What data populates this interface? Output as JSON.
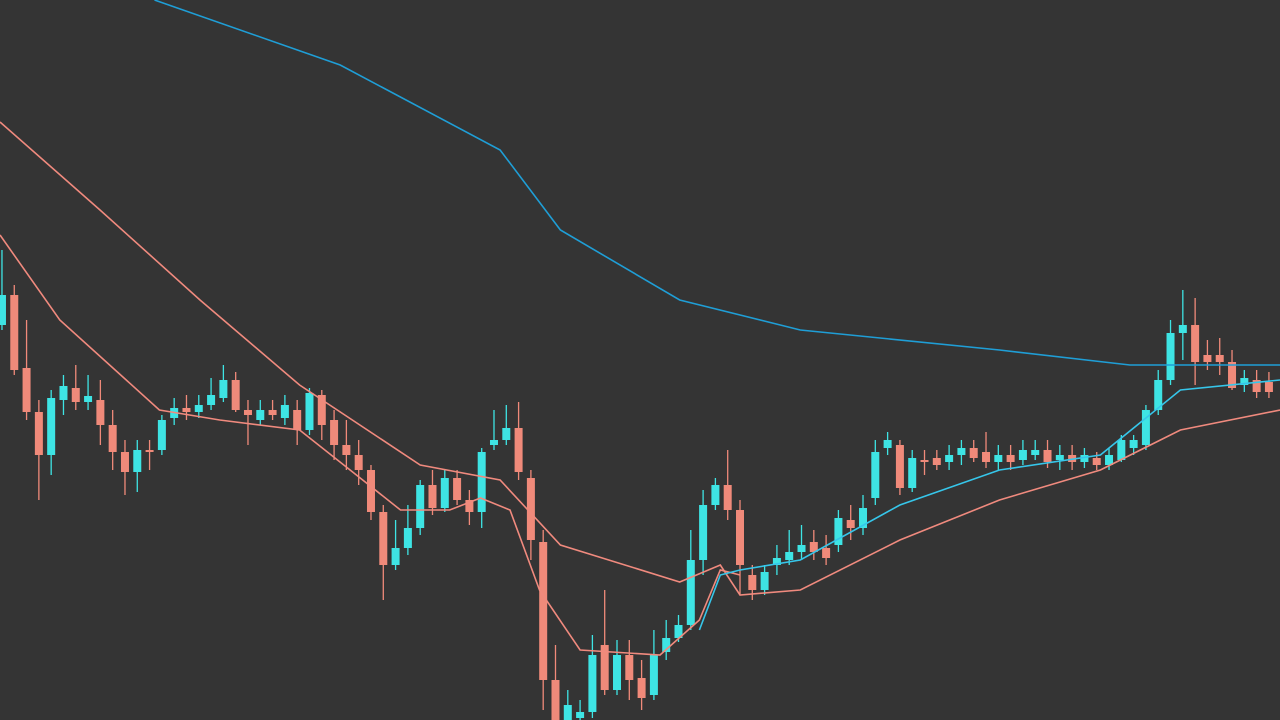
{
  "chart_data": {
    "type": "candlestick",
    "up_color": "#3ee4e4",
    "down_color": "#f08a7a",
    "xlim": [
      -0.16,
      103.9
    ],
    "ylim": [
      0,
      720
    ],
    "x": [
      0,
      1,
      2,
      3,
      4,
      5,
      6,
      7,
      8,
      9,
      10,
      11,
      12,
      13,
      14,
      15,
      16,
      17,
      18,
      19,
      20,
      21,
      22,
      23,
      24,
      25,
      26,
      27,
      28,
      29,
      30,
      31,
      32,
      33,
      34,
      35,
      36,
      37,
      38,
      39,
      40,
      41,
      42,
      43,
      44,
      45,
      46,
      47,
      48,
      49,
      50,
      51,
      52,
      53,
      54,
      55,
      56,
      57,
      58,
      59,
      60,
      61,
      62,
      63,
      64,
      65,
      66,
      67,
      68,
      69,
      70,
      71,
      72,
      73,
      74,
      75,
      76,
      77,
      78,
      79,
      80,
      81,
      82,
      83,
      84,
      85,
      86,
      87,
      88,
      89,
      90,
      91,
      92,
      93,
      94,
      95,
      96,
      97,
      98,
      99,
      100,
      101,
      102,
      103
    ],
    "open": [
      395,
      425,
      352,
      308,
      265,
      320,
      332,
      318,
      320,
      295,
      268,
      248,
      270,
      270,
      302,
      312,
      308,
      315,
      322,
      340,
      310,
      300,
      310,
      302,
      310,
      290,
      325,
      300,
      275,
      265,
      250,
      208,
      155,
      172,
      192,
      235,
      212,
      242,
      220,
      208,
      275,
      280,
      292,
      242,
      178,
      40,
      0,
      2,
      8,
      75,
      30,
      65,
      42,
      25,
      68,
      82,
      95,
      160,
      215,
      235,
      210,
      145,
      130,
      155,
      160,
      168,
      178,
      172,
      175,
      200,
      192,
      222,
      272,
      275,
      232,
      260,
      262,
      258,
      265,
      272,
      268,
      258,
      265,
      260,
      265,
      270,
      260,
      265,
      258,
      262,
      255,
      260,
      272,
      275,
      310,
      340,
      387,
      395,
      365,
      365,
      358,
      335,
      340,
      338
    ],
    "high": [
      470,
      435,
      400,
      320,
      330,
      345,
      355,
      345,
      340,
      310,
      280,
      280,
      280,
      305,
      322,
      325,
      325,
      342,
      355,
      348,
      320,
      320,
      320,
      325,
      320,
      332,
      330,
      310,
      300,
      280,
      255,
      215,
      200,
      215,
      240,
      250,
      250,
      250,
      230,
      272,
      310,
      315,
      318,
      250,
      190,
      75,
      30,
      20,
      85,
      130,
      80,
      80,
      60,
      90,
      100,
      105,
      190,
      230,
      242,
      270,
      220,
      155,
      155,
      175,
      190,
      195,
      190,
      185,
      210,
      215,
      225,
      280,
      288,
      280,
      270,
      270,
      270,
      275,
      280,
      280,
      288,
      275,
      275,
      280,
      280,
      280,
      275,
      275,
      272,
      268,
      272,
      285,
      285,
      315,
      350,
      400,
      430,
      422,
      380,
      382,
      370,
      350,
      350,
      348
    ],
    "low": [
      390,
      345,
      300,
      220,
      245,
      305,
      310,
      310,
      275,
      250,
      225,
      228,
      250,
      265,
      295,
      300,
      302,
      310,
      318,
      308,
      275,
      295,
      300,
      295,
      275,
      285,
      280,
      260,
      250,
      235,
      200,
      120,
      150,
      165,
      185,
      205,
      208,
      215,
      195,
      192,
      270,
      275,
      240,
      160,
      10,
      0,
      0,
      0,
      2,
      25,
      25,
      20,
      10,
      20,
      60,
      78,
      90,
      145,
      210,
      200,
      125,
      120,
      125,
      145,
      155,
      160,
      160,
      155,
      168,
      180,
      185,
      215,
      265,
      225,
      228,
      245,
      250,
      250,
      255,
      258,
      252,
      250,
      250,
      255,
      260,
      252,
      250,
      250,
      252,
      250,
      250,
      258,
      265,
      270,
      305,
      335,
      360,
      335,
      350,
      345,
      330,
      328,
      322,
      322
    ],
    "close": [
      425,
      350,
      308,
      265,
      322,
      334,
      318,
      324,
      295,
      268,
      248,
      270,
      268,
      300,
      312,
      308,
      315,
      325,
      340,
      310,
      305,
      310,
      305,
      315,
      290,
      327,
      295,
      275,
      265,
      250,
      208,
      155,
      172,
      192,
      235,
      212,
      242,
      220,
      208,
      268,
      280,
      292,
      248,
      180,
      40,
      0,
      15,
      8,
      65,
      30,
      65,
      40,
      22,
      65,
      82,
      95,
      160,
      215,
      235,
      210,
      155,
      130,
      148,
      162,
      168,
      175,
      168,
      162,
      202,
      192,
      212,
      268,
      280,
      232,
      262,
      258,
      255,
      265,
      272,
      262,
      258,
      265,
      258,
      270,
      270,
      258,
      265,
      258,
      265,
      255,
      265,
      280,
      280,
      310,
      340,
      387,
      395,
      358,
      358,
      358,
      332,
      342,
      328,
      328
    ],
    "lines": [
      {
        "color": "#1f9ed6",
        "x": [
          12.4,
          27.5,
          40.5,
          45.4,
          55.1,
          64.9,
          81.1,
          91.7,
          103.9
        ],
        "values": [
          720,
          655,
          570,
          490,
          420,
          390,
          370,
          355,
          355
        ]
      },
      {
        "color": "#f08a7e",
        "x": [
          -0.16,
          7.97,
          16.1,
          24.2,
          34.0,
          40.5,
          45.4,
          55.1,
          58.4,
          60.0,
          64.9,
          73.0,
          81.1,
          89.3,
          95.8,
          103.9
        ],
        "values": [
          598,
          510,
          420,
          335,
          255,
          240,
          175,
          138,
          155,
          125,
          130,
          180,
          220,
          250,
          290,
          310
        ]
      },
      {
        "color": "#f08a7e",
        "x": [
          -0.16,
          4.7,
          12.8,
          17.7,
          24.2,
          28.3,
          32.4,
          36.4,
          38.9,
          41.3,
          43.7,
          47.0,
          53.5,
          56.7,
          58.4,
          60.0
        ],
        "values": [
          485,
          400,
          310,
          300,
          290,
          250,
          210,
          210,
          222,
          210,
          130,
          70,
          65,
          100,
          150,
          145
        ]
      },
      {
        "color": "#36c6ea",
        "x": [
          56.7,
          58.4,
          60.0,
          64.9,
          73.0,
          81.1,
          89.3,
          95.8,
          103.9
        ],
        "values": [
          90,
          145,
          150,
          160,
          215,
          250,
          265,
          330,
          340
        ]
      }
    ]
  }
}
